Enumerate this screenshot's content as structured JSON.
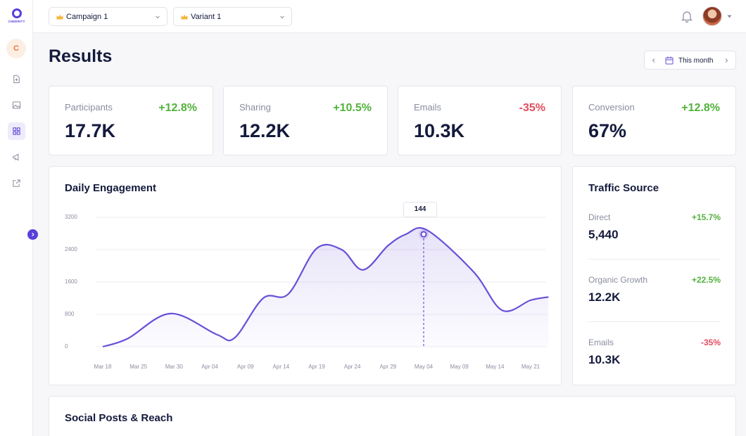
{
  "app": {
    "logo_text": "CHEERITY",
    "workspace_initial": "C"
  },
  "topbar": {
    "campaign_select": "Campaign 1",
    "variant_select": "Variant 1"
  },
  "page": {
    "title": "Results",
    "date_range": "This month"
  },
  "stats": [
    {
      "label": "Participants",
      "value": "17.7K",
      "change": "+12.8%",
      "trend": "up"
    },
    {
      "label": "Sharing",
      "value": "12.2K",
      "change": "+10.5%",
      "trend": "up"
    },
    {
      "label": "Emails",
      "value": "10.3K",
      "change": "-35%",
      "trend": "down"
    },
    {
      "label": "Conversion",
      "value": "67%",
      "change": "+12.8%",
      "trend": "up"
    }
  ],
  "daily_engagement": {
    "title": "Daily Engagement",
    "tooltip_value": "144"
  },
  "chart_data": {
    "type": "area",
    "title": "Daily Engagement",
    "xlabel": "",
    "ylabel": "",
    "ylim": [
      0,
      3200
    ],
    "yticks": [
      "3200",
      "2400",
      "1600",
      "800",
      "0"
    ],
    "categories": [
      "Mar 18",
      "Mar 25",
      "Mar 30",
      "Apr 04",
      "Apr 09",
      "Apr 14",
      "Apr 19",
      "Apr 24",
      "Apr 29",
      "May 04",
      "May 09",
      "May 14",
      "May 21"
    ],
    "series": [
      {
        "name": "Engagement",
        "x": [
          0,
          0.7,
          1.9,
          3.2,
          3.7,
          4.5,
          5.2,
          6.0,
          6.7,
          7.3,
          8.0,
          8.5,
          9.1,
          10.4,
          11.2,
          12.0,
          12.5
        ],
        "values": [
          0,
          200,
          820,
          300,
          220,
          1200,
          1300,
          2430,
          2400,
          1900,
          2500,
          2780,
          2880,
          1850,
          900,
          1150,
          1230
        ]
      }
    ],
    "highlight": {
      "x": 9.0,
      "value": 2780,
      "label": "144"
    },
    "color": "#6a4fd8"
  },
  "traffic_source": {
    "title": "Traffic Source",
    "items": [
      {
        "label": "Direct",
        "value": "5,440",
        "change": "+15.7%",
        "trend": "up"
      },
      {
        "label": "Organic Growth",
        "value": "12.2K",
        "change": "+22.5%",
        "trend": "up"
      },
      {
        "label": "Emails",
        "value": "10.3K",
        "change": "-35%",
        "trend": "down"
      }
    ]
  },
  "social_posts": {
    "title": "Social Posts & Reach"
  },
  "colors": {
    "accent": "#5b3fd9",
    "positive": "#52b13c",
    "negative": "#e24d5e",
    "text": "#141a3d",
    "muted": "#8a8da0"
  }
}
